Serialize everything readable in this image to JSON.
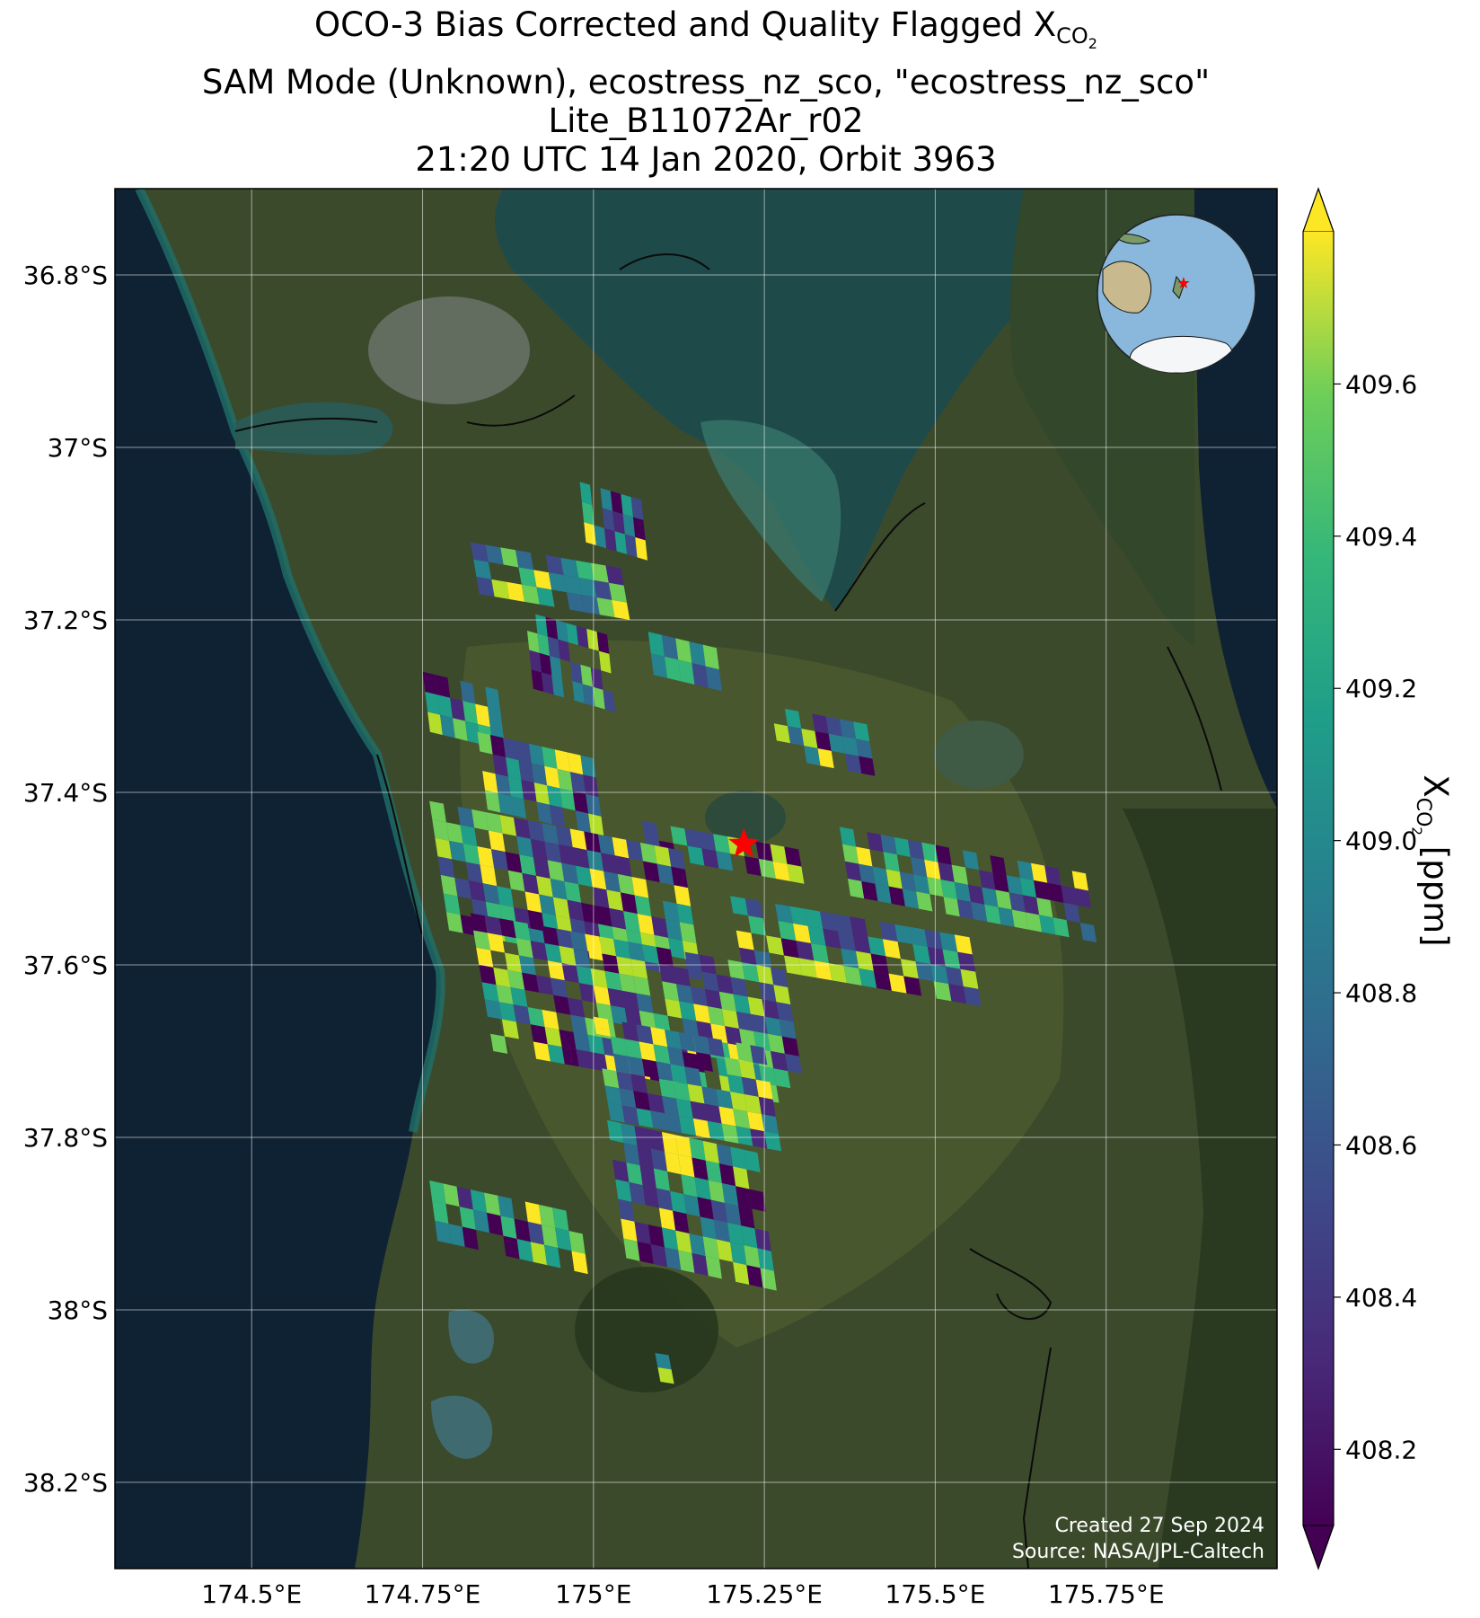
{
  "title": {
    "line1_prefix": "OCO-3 Bias Corrected and Quality Flagged X",
    "line1_sub": "CO",
    "line1_subsub": "2",
    "line2": "SAM Mode (Unknown), ecostress_nz_sco, \"ecostress_nz_sco\"",
    "line3": "Lite_B11072Ar_r02",
    "line4": "21:20 UTC 14 Jan 2020, Orbit 3963"
  },
  "map": {
    "lat_ticks": [
      "36.8°S",
      "37°S",
      "37.2°S",
      "37.4°S",
      "37.6°S",
      "37.8°S",
      "38°S",
      "38.2°S"
    ],
    "lon_ticks": [
      "174.5°E",
      "174.75°E",
      "175°E",
      "175.25°E",
      "175.5°E",
      "175.75°E"
    ],
    "lat_values": [
      -36.8,
      -37.0,
      -37.2,
      -37.4,
      -37.6,
      -37.8,
      -38.0,
      -38.2
    ],
    "lon_values": [
      174.5,
      174.75,
      175.0,
      175.25,
      175.5,
      175.75
    ],
    "extent": {
      "lon_min": 174.3,
      "lon_max": 176.0,
      "lat_max": -36.7,
      "lat_min": -38.3
    },
    "target_marker": {
      "icon": "red-star-icon",
      "lon": 175.22,
      "lat": -37.46,
      "color": "#ff0000"
    },
    "inset_globe": {
      "icon": "globe-locator-icon",
      "ocean_color": "#8ab8dd",
      "marker_color": "#ff0000"
    },
    "credit_line1": "Created 27 Sep 2024",
    "credit_line2": "Source: NASA/JPL-Caltech"
  },
  "colorbar": {
    "label_prefix": "X",
    "label_sub": "CO",
    "label_subsub": "2",
    "label_suffix": " [ppm]",
    "ticks": [
      "409.6",
      "409.4",
      "409.2",
      "409.0",
      "408.8",
      "408.6",
      "408.4",
      "408.2"
    ],
    "tick_values": [
      409.6,
      409.4,
      409.2,
      409.0,
      408.8,
      408.6,
      408.4,
      408.2
    ],
    "vmin": 408.1,
    "vmax": 409.8,
    "extend": "both",
    "colormap": "viridis"
  },
  "chart_data": {
    "type": "heatmap",
    "variable": "XCO2 (ppm)",
    "value_range": [
      408.1,
      409.8
    ],
    "swaths": [
      {
        "lon0": 174.98,
        "lat0": -37.04,
        "lon1": 175.07,
        "lat1": -37.11,
        "cols": 6,
        "rows": 3
      },
      {
        "lon0": 174.82,
        "lat0": -37.11,
        "lon1": 175.04,
        "lat1": -37.17,
        "cols": 10,
        "rows": 3
      },
      {
        "lon0": 174.9,
        "lat0": -37.19,
        "lon1": 175.02,
        "lat1": -37.28,
        "cols": 8,
        "rows": 4
      },
      {
        "lon0": 174.75,
        "lat0": -37.26,
        "lon1": 174.86,
        "lat1": -37.33,
        "cols": 6,
        "rows": 3
      },
      {
        "lon0": 175.06,
        "lat0": -37.21,
        "lon1": 175.18,
        "lat1": -37.26,
        "cols": 6,
        "rows": 2
      },
      {
        "lon0": 175.26,
        "lat0": -37.3,
        "lon1": 175.4,
        "lat1": -37.36,
        "cols": 7,
        "rows": 3
      },
      {
        "lon0": 174.83,
        "lat0": -37.33,
        "lon1": 175.0,
        "lat1": -37.42,
        "cols": 9,
        "rows": 4
      },
      {
        "lon0": 175.36,
        "lat0": -37.44,
        "lon1": 175.72,
        "lat1": -37.52,
        "cols": 18,
        "rows": 4
      },
      {
        "lon0": 175.05,
        "lat0": -37.43,
        "lon1": 175.3,
        "lat1": -37.47,
        "cols": 12,
        "rows": 2
      },
      {
        "lon0": 174.76,
        "lat0": -37.41,
        "lon1": 175.13,
        "lat1": -37.56,
        "cols": 18,
        "rows": 7
      },
      {
        "lon0": 175.2,
        "lat0": -37.52,
        "lon1": 175.55,
        "lat1": -37.6,
        "cols": 16,
        "rows": 4
      },
      {
        "lon0": 174.82,
        "lat0": -37.54,
        "lon1": 175.28,
        "lat1": -37.7,
        "cols": 22,
        "rows": 8
      },
      {
        "lon0": 175.0,
        "lat0": -37.66,
        "lon1": 175.25,
        "lat1": -37.78,
        "cols": 12,
        "rows": 6
      },
      {
        "lon0": 175.02,
        "lat0": -37.78,
        "lon1": 175.24,
        "lat1": -37.94,
        "cols": 11,
        "rows": 7
      },
      {
        "lon0": 174.76,
        "lat0": -37.85,
        "lon1": 174.98,
        "lat1": -37.92,
        "cols": 11,
        "rows": 3
      },
      {
        "lon0": 175.09,
        "lat0": -38.05,
        "lon1": 175.11,
        "lat1": -38.1,
        "cols": 1,
        "rows": 3
      }
    ]
  }
}
